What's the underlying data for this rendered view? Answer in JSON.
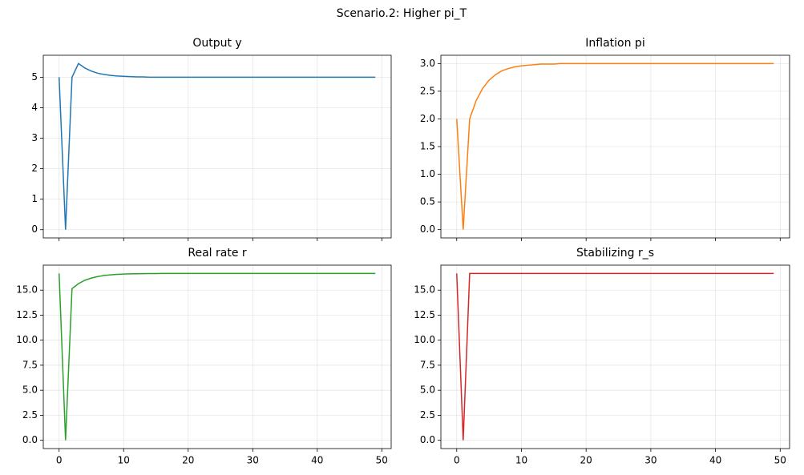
{
  "title": "Scenario.2: Higher pi_T",
  "chart_data": [
    {
      "type": "line",
      "title": "Output y",
      "color": "#1f77b4",
      "grid": true,
      "x": [
        0,
        1,
        2,
        3,
        4,
        5,
        6,
        7,
        8,
        9,
        10,
        11,
        12,
        13,
        14,
        15,
        16,
        17,
        18,
        19,
        20,
        21,
        22,
        23,
        24,
        25,
        26,
        27,
        28,
        29,
        30,
        31,
        32,
        33,
        34,
        35,
        36,
        37,
        38,
        39,
        40,
        41,
        42,
        43,
        44,
        45,
        46,
        47,
        48,
        49
      ],
      "values": [
        5,
        0,
        5,
        5.45,
        5.3,
        5.2,
        5.13,
        5.09,
        5.06,
        5.04,
        5.03,
        5.02,
        5.01,
        5.01,
        5,
        5,
        5,
        5,
        5,
        5,
        5,
        5,
        5,
        5,
        5,
        5,
        5,
        5,
        5,
        5,
        5,
        5,
        5,
        5,
        5,
        5,
        5,
        5,
        5,
        5,
        5,
        5,
        5,
        5,
        5,
        5,
        5,
        5,
        5,
        5
      ],
      "xlim": [
        -2.45,
        51.45
      ],
      "xticks": [
        0,
        10,
        20,
        30,
        40,
        50
      ],
      "ylim": [
        -0.27,
        5.72
      ],
      "yticks": [
        0,
        1,
        2,
        3,
        4,
        5
      ]
    },
    {
      "type": "line",
      "title": "Inflation pi",
      "color": "#ff7f0e",
      "grid": true,
      "x": [
        0,
        1,
        2,
        3,
        4,
        5,
        6,
        7,
        8,
        9,
        10,
        11,
        12,
        13,
        14,
        15,
        16,
        17,
        18,
        19,
        20,
        21,
        22,
        23,
        24,
        25,
        26,
        27,
        28,
        29,
        30,
        31,
        32,
        33,
        34,
        35,
        36,
        37,
        38,
        39,
        40,
        41,
        42,
        43,
        44,
        45,
        46,
        47,
        48,
        49
      ],
      "values": [
        2,
        0,
        2,
        2.33,
        2.55,
        2.7,
        2.8,
        2.87,
        2.91,
        2.94,
        2.96,
        2.97,
        2.98,
        2.99,
        2.99,
        2.99,
        3,
        3,
        3,
        3,
        3,
        3,
        3,
        3,
        3,
        3,
        3,
        3,
        3,
        3,
        3,
        3,
        3,
        3,
        3,
        3,
        3,
        3,
        3,
        3,
        3,
        3,
        3,
        3,
        3,
        3,
        3,
        3,
        3,
        3
      ],
      "xlim": [
        -2.45,
        51.45
      ],
      "xticks": [
        0,
        10,
        20,
        30,
        40,
        50
      ],
      "ylim": [
        -0.15,
        3.15
      ],
      "yticks": [
        {
          "value": 0,
          "label": "0.0"
        },
        0.5,
        {
          "value": 1,
          "label": "1.0"
        },
        1.5,
        {
          "value": 2,
          "label": "2.0"
        },
        2.5,
        {
          "value": 3,
          "label": "3.0"
        }
      ]
    },
    {
      "type": "line",
      "title": "Real rate r",
      "color": "#2ca02c",
      "grid": true,
      "x": [
        0,
        1,
        2,
        3,
        4,
        5,
        6,
        7,
        8,
        9,
        10,
        11,
        12,
        13,
        14,
        15,
        16,
        17,
        18,
        19,
        20,
        21,
        22,
        23,
        24,
        25,
        26,
        27,
        28,
        29,
        30,
        31,
        32,
        33,
        34,
        35,
        36,
        37,
        38,
        39,
        40,
        41,
        42,
        43,
        44,
        45,
        46,
        47,
        48,
        49
      ],
      "values": [
        16.67,
        0,
        15.15,
        15.65,
        15.99,
        16.21,
        16.36,
        16.47,
        16.53,
        16.58,
        16.61,
        16.63,
        16.64,
        16.65,
        16.66,
        16.66,
        16.67,
        16.67,
        16.67,
        16.67,
        16.67,
        16.67,
        16.67,
        16.67,
        16.67,
        16.67,
        16.67,
        16.67,
        16.67,
        16.67,
        16.67,
        16.67,
        16.67,
        16.67,
        16.67,
        16.67,
        16.67,
        16.67,
        16.67,
        16.67,
        16.67,
        16.67,
        16.67,
        16.67,
        16.67,
        16.67,
        16.67,
        16.67,
        16.67,
        16.67
      ],
      "xlim": [
        -2.45,
        51.45
      ],
      "xticks": [
        0,
        10,
        20,
        30,
        40,
        50
      ],
      "ylim": [
        -0.83,
        17.5
      ],
      "yticks": [
        {
          "value": 0,
          "label": "0.0"
        },
        2.5,
        {
          "value": 5,
          "label": "5.0"
        },
        7.5,
        {
          "value": 10,
          "label": "10.0"
        },
        12.5,
        {
          "value": 15,
          "label": "15.0"
        }
      ]
    },
    {
      "type": "line",
      "title": "Stabilizing r_s",
      "color": "#d62728",
      "grid": true,
      "x": [
        0,
        1,
        2,
        3,
        4,
        5,
        6,
        7,
        8,
        9,
        10,
        11,
        12,
        13,
        14,
        15,
        16,
        17,
        18,
        19,
        20,
        21,
        22,
        23,
        24,
        25,
        26,
        27,
        28,
        29,
        30,
        31,
        32,
        33,
        34,
        35,
        36,
        37,
        38,
        39,
        40,
        41,
        42,
        43,
        44,
        45,
        46,
        47,
        48,
        49
      ],
      "values": [
        16.67,
        0,
        16.67,
        16.67,
        16.67,
        16.67,
        16.67,
        16.67,
        16.67,
        16.67,
        16.67,
        16.67,
        16.67,
        16.67,
        16.67,
        16.67,
        16.67,
        16.67,
        16.67,
        16.67,
        16.67,
        16.67,
        16.67,
        16.67,
        16.67,
        16.67,
        16.67,
        16.67,
        16.67,
        16.67,
        16.67,
        16.67,
        16.67,
        16.67,
        16.67,
        16.67,
        16.67,
        16.67,
        16.67,
        16.67,
        16.67,
        16.67,
        16.67,
        16.67,
        16.67,
        16.67,
        16.67,
        16.67,
        16.67,
        16.67
      ],
      "xlim": [
        -2.45,
        51.45
      ],
      "xticks": [
        0,
        10,
        20,
        30,
        40,
        50
      ],
      "ylim": [
        -0.83,
        17.5
      ],
      "yticks": [
        {
          "value": 0,
          "label": "0.0"
        },
        2.5,
        {
          "value": 5,
          "label": "5.0"
        },
        7.5,
        {
          "value": 10,
          "label": "10.0"
        },
        12.5,
        {
          "value": 15,
          "label": "15.0"
        }
      ]
    }
  ]
}
